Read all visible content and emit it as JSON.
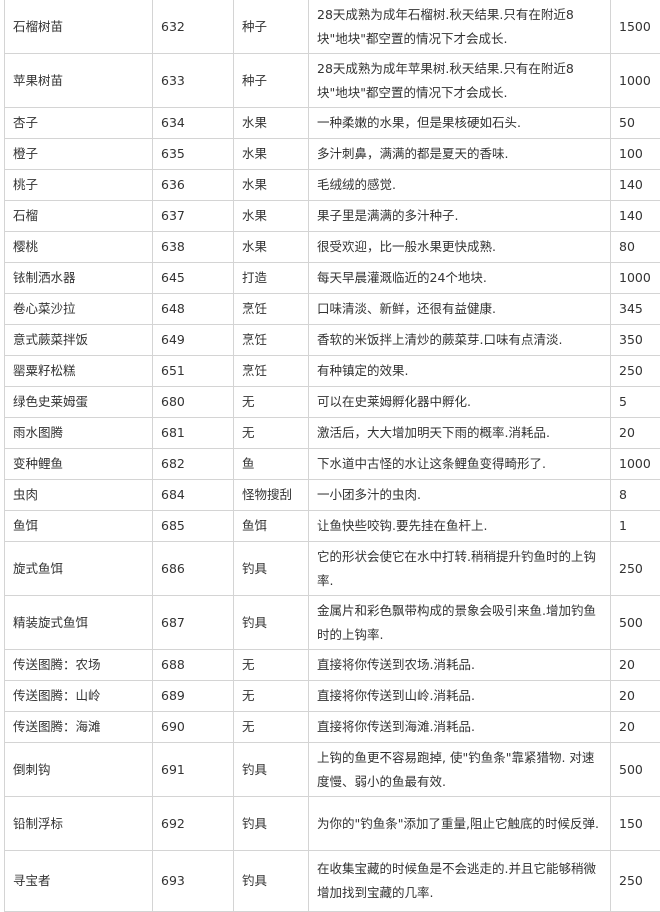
{
  "table": {
    "rows": [
      {
        "name": "石榴树苗",
        "id": "632",
        "type": "种子",
        "desc": "28天成熟为成年石榴树.秋天结果.只有在附近8块\"地块\"都空置的情况下才会成长.",
        "price": "1500"
      },
      {
        "name": "苹果树苗",
        "id": "633",
        "type": "种子",
        "desc": "28天成熟为成年苹果树.秋天结果.只有在附近8块\"地块\"都空置的情况下才会成长.",
        "price": "1000"
      },
      {
        "name": "杏子",
        "id": "634",
        "type": "水果",
        "desc": "一种柔嫩的水果，但是果核硬如石头.",
        "price": "50"
      },
      {
        "name": "橙子",
        "id": "635",
        "type": "水果",
        "desc": "多汁刺鼻，满满的都是夏天的香味.",
        "price": "100"
      },
      {
        "name": "桃子",
        "id": "636",
        "type": "水果",
        "desc": "毛绒绒的感觉.",
        "price": "140"
      },
      {
        "name": "石榴",
        "id": "637",
        "type": "水果",
        "desc": "果子里是满满的多汁种子.",
        "price": "140"
      },
      {
        "name": "樱桃",
        "id": "638",
        "type": "水果",
        "desc": "很受欢迎，比一般水果更快成熟.",
        "price": "80"
      },
      {
        "name": "铱制洒水器",
        "id": "645",
        "type": "打造",
        "desc": "每天早晨灌溉临近的24个地块.",
        "price": "1000"
      },
      {
        "name": "卷心菜沙拉",
        "id": "648",
        "type": "烹饪",
        "desc": "口味清淡、新鲜，还很有益健康.",
        "price": "345"
      },
      {
        "name": "意式蕨菜拌饭",
        "id": "649",
        "type": "烹饪",
        "desc": "香软的米饭拌上清炒的蕨菜芽.口味有点清淡.",
        "price": "350"
      },
      {
        "name": "罂粟籽松糕",
        "id": "651",
        "type": "烹饪",
        "desc": "有种镇定的效果.",
        "price": "250"
      },
      {
        "name": "绿色史莱姆蛋",
        "id": "680",
        "type": "无",
        "desc": "可以在史莱姆孵化器中孵化.",
        "price": "5"
      },
      {
        "name": "雨水图腾",
        "id": "681",
        "type": "无",
        "desc": "激活后，大大增加明天下雨的概率.消耗品.",
        "price": "20"
      },
      {
        "name": "变种鲤鱼",
        "id": "682",
        "type": "鱼",
        "desc": "下水道中古怪的水让这条鲤鱼变得畸形了.",
        "price": "1000"
      },
      {
        "name": "虫肉",
        "id": "684",
        "type": "怪物搜刮",
        "desc": "一小团多汁的虫肉.",
        "price": "8"
      },
      {
        "name": "鱼饵",
        "id": "685",
        "type": "鱼饵",
        "desc": "让鱼快些咬钩.要先挂在鱼杆上.",
        "price": "1"
      },
      {
        "name": "旋式鱼饵",
        "id": "686",
        "type": "钓具",
        "desc": "它的形状会使它在水中打转.稍稍提升钓鱼时的上钩率.",
        "price": "250"
      },
      {
        "name": "精装旋式鱼饵",
        "id": "687",
        "type": "钓具",
        "desc": "金属片和彩色飘带构成的景象会吸引来鱼.增加钓鱼时的上钩率.",
        "price": "500"
      },
      {
        "name": "传送图腾：农场",
        "id": "688",
        "type": "无",
        "desc": "直接将你传送到农场.消耗品.",
        "price": "20"
      },
      {
        "name": "传送图腾：山岭",
        "id": "689",
        "type": "无",
        "desc": "直接将你传送到山岭.消耗品.",
        "price": "20"
      },
      {
        "name": "传送图腾：海滩",
        "id": "690",
        "type": "无",
        "desc": "直接将你传送到海滩.消耗品.",
        "price": "20"
      },
      {
        "name": "倒刺钩",
        "id": "691",
        "type": "钓具",
        "desc": "上钩的鱼更不容易跑掉, 使\"钓鱼条\"靠紧猎物. 对速度慢、弱小的鱼最有效.",
        "price": "500"
      },
      {
        "name": "铅制浮标",
        "id": "692",
        "type": "钓具",
        "desc": "为你的\"钓鱼条\"添加了重量,阻止它触底的时候反弹.",
        "price": "150"
      },
      {
        "name": "寻宝者",
        "id": "693",
        "type": "钓具",
        "desc": "在收集宝藏的时候鱼是不会逃走的.并且它能够稍微增加找到宝藏的几率.",
        "price": "250"
      }
    ]
  }
}
